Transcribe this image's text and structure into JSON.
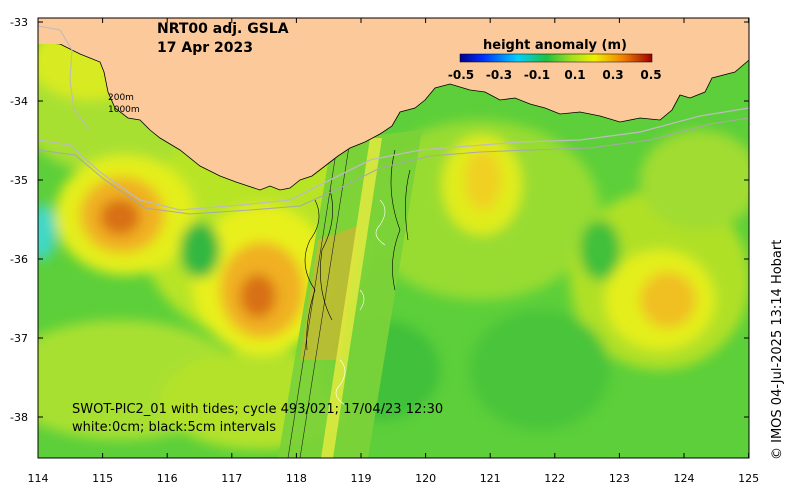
{
  "title": {
    "line1": "NRT00 adj. GSLA",
    "line2": "17 Apr 2023"
  },
  "colorbar": {
    "title": "height anomaly (m)",
    "ticks": [
      "-0.5",
      "-0.3",
      "-0.1",
      "0.1",
      "0.3",
      "0.5"
    ]
  },
  "depth_labels": [
    "200m",
    "1000m"
  ],
  "swot_caption": {
    "line1": "SWOT-PIC2_01 with tides; cycle 493/021; 17/04/23 12:30",
    "line2": "white:0cm; black:5cm intervals"
  },
  "credit": "© IMOS 04-Jul-2025 13:14 Hobart",
  "axes": {
    "x_ticks": [
      "114",
      "115",
      "116",
      "117",
      "118",
      "119",
      "120",
      "121",
      "122",
      "123",
      "124",
      "125"
    ],
    "y_ticks": [
      "-33",
      "-34",
      "-35",
      "-36",
      "-37",
      "-38"
    ]
  },
  "colors": {
    "land": "#fcc99b",
    "ocean_base": "#5fd03a",
    "yellow": "#e8f01c",
    "orange": "#f0a020",
    "dark_orange": "#d46a10",
    "cyan": "#40d8d0"
  }
}
